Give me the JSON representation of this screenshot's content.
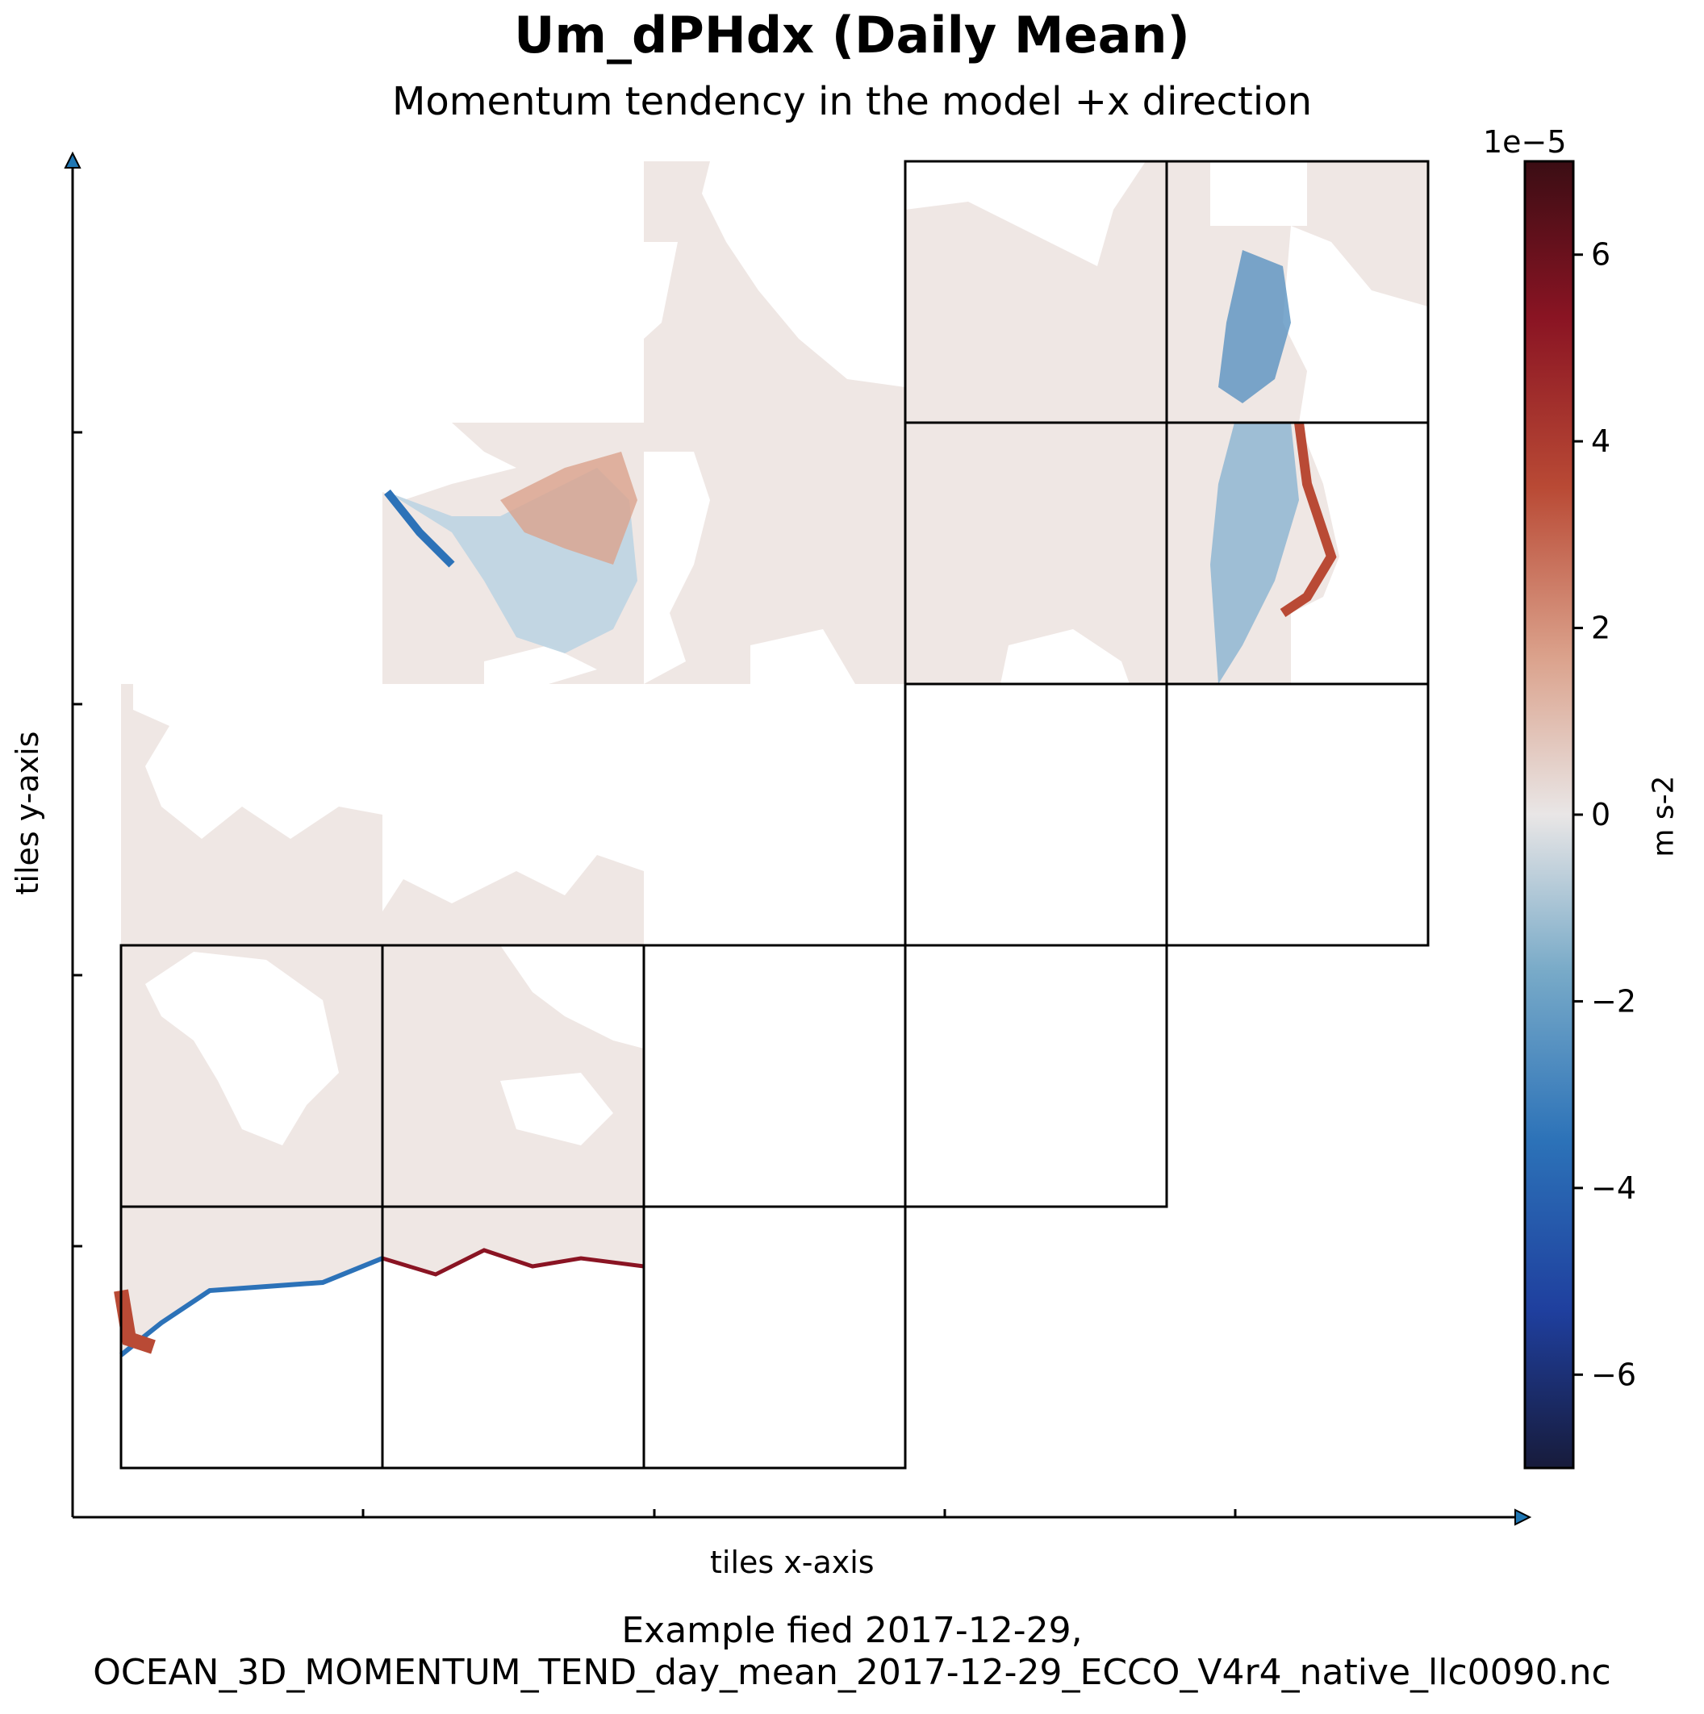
{
  "chart_data": {
    "type": "heatmap",
    "title": "Um_dPHdx (Daily Mean)",
    "subtitle": "Momentum tendency in the model +x direction",
    "xlabel": "tiles x-axis",
    "ylabel": "tiles y-axis",
    "footer_line1": "Example fied 2017-12-29,",
    "footer_line2": "OCEAN_3D_MOMENTUM_TEND_day_mean_2017-12-29_ECCO_V4r4_native_llc0090.nc",
    "colorbar": {
      "label": "m s-2",
      "multiplier": "1e−5",
      "range": [
        -7,
        7
      ],
      "ticks": [
        6,
        4,
        2,
        0,
        -2,
        -4,
        -6
      ],
      "tick_labels": [
        "6",
        "4",
        "2",
        "0",
        "−2",
        "−4",
        "−6"
      ],
      "colormap": "balance",
      "colors": [
        "#171b3b",
        "#1f3f9e",
        "#2c72b8",
        "#78aac8",
        "#e9e6e6",
        "#dba28c",
        "#b94a35",
        "#8a1423",
        "#3b0d14"
      ]
    },
    "layout": {
      "columns": 5,
      "rows": 5,
      "tiles_present": [
        [
          0,
          0
        ],
        [
          0,
          1
        ],
        [
          0,
          2
        ],
        [
          1,
          0
        ],
        [
          1,
          1
        ],
        [
          1,
          2
        ],
        [
          1,
          3
        ],
        [
          2,
          3
        ],
        [
          2,
          4
        ],
        [
          3,
          3
        ],
        [
          3,
          4
        ],
        [
          4,
          3
        ],
        [
          4,
          4
        ]
      ]
    },
    "grid": false,
    "legend": "colorbar right"
  }
}
